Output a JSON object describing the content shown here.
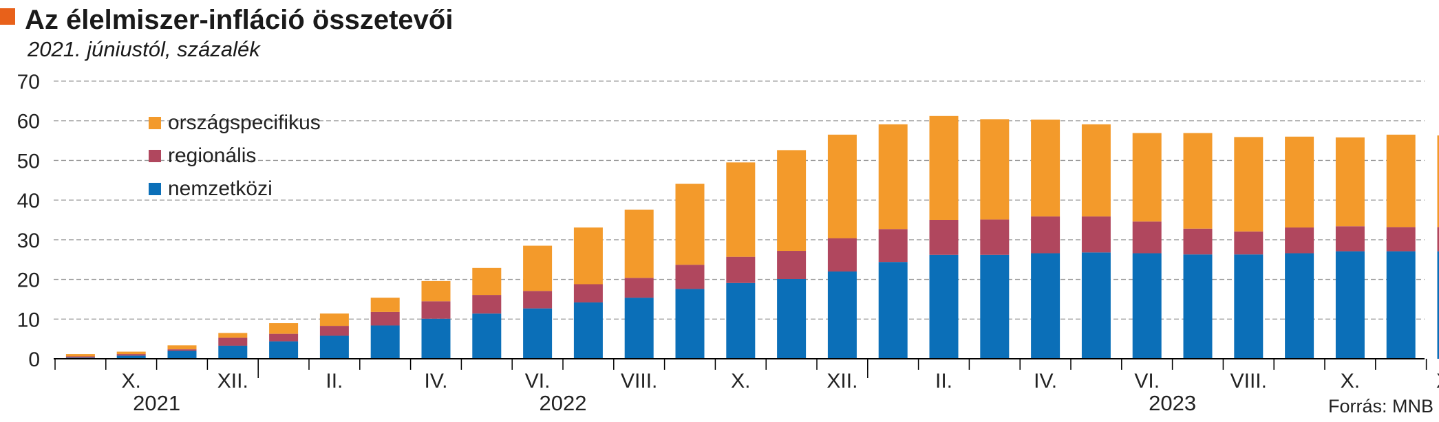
{
  "colors": {
    "title_marker": "#e8611a",
    "nemzetkozi": "#0b6fb8",
    "regionalis": "#b0475e",
    "orszagspecifikus": "#f39a2b",
    "grid": "#9a9a9a",
    "axis": "#000000"
  },
  "chart_data": {
    "type": "bar",
    "stacked": true,
    "title": "Az élelmiszer-infláció összetevői",
    "subtitle": "2021. júniustól, százalék",
    "ylim": [
      0,
      70
    ],
    "yticks": [
      "0",
      "10",
      "20",
      "30",
      "40",
      "50",
      "60",
      "70"
    ],
    "categories": [
      "2021-09",
      "2021-10",
      "2021-11",
      "2021-12",
      "2022-01",
      "2022-02",
      "2022-03",
      "2022-04",
      "2022-05",
      "2022-06",
      "2022-07",
      "2022-08",
      "2022-09",
      "2022-10",
      "2022-11",
      "2022-12",
      "2023-01",
      "2023-02",
      "2023-03",
      "2023-04",
      "2023-05",
      "2023-06",
      "2023-07",
      "2023-08",
      "2023-09",
      "2023-10",
      "2023-11",
      "2023-12"
    ],
    "xtick_labels": [
      {
        "index": 1,
        "label": "X."
      },
      {
        "index": 3,
        "label": "XII."
      },
      {
        "index": 5,
        "label": "II."
      },
      {
        "index": 7,
        "label": "IV."
      },
      {
        "index": 9,
        "label": "VI."
      },
      {
        "index": 11,
        "label": "VIII."
      },
      {
        "index": 13,
        "label": "X."
      },
      {
        "index": 15,
        "label": "XII."
      },
      {
        "index": 17,
        "label": "II."
      },
      {
        "index": 19,
        "label": "IV."
      },
      {
        "index": 21,
        "label": "VI."
      },
      {
        "index": 23,
        "label": "VIII."
      },
      {
        "index": 25,
        "label": "X."
      },
      {
        "index": 27,
        "label": "XII."
      }
    ],
    "year_labels": [
      {
        "label": "2021",
        "first": 0,
        "last": 3
      },
      {
        "label": "2022",
        "first": 4,
        "last": 15
      },
      {
        "label": "2023",
        "first": 16,
        "last": 27
      }
    ],
    "series": [
      {
        "name": "nemzetközi",
        "key": "nemzetkozi",
        "values": [
          0.3,
          0.8,
          2.0,
          3.3,
          4.4,
          5.8,
          8.4,
          10.1,
          11.4,
          12.7,
          14.2,
          15.4,
          17.6,
          19.1,
          20.1,
          22.0,
          24.4,
          26.2,
          26.2,
          26.6,
          26.8,
          26.6,
          26.3,
          26.3,
          26.6,
          27.1,
          27.1,
          27.1
        ]
      },
      {
        "name": "regionális",
        "key": "regionalis",
        "values": [
          0.3,
          0.4,
          0.4,
          2.0,
          1.9,
          2.5,
          3.4,
          4.4,
          4.7,
          4.4,
          4.6,
          5.0,
          6.1,
          6.6,
          7.1,
          8.4,
          8.3,
          8.8,
          8.9,
          9.3,
          9.1,
          8.0,
          6.5,
          5.8,
          6.5,
          6.3,
          6.1,
          6.1
        ]
      },
      {
        "name": "országspecifikus",
        "key": "orszagspecifikus",
        "values": [
          0.6,
          0.6,
          1.0,
          1.2,
          2.7,
          3.1,
          3.6,
          5.1,
          6.8,
          11.4,
          14.3,
          17.2,
          20.4,
          23.8,
          25.4,
          26.1,
          26.4,
          26.2,
          25.3,
          24.4,
          23.2,
          22.3,
          24.1,
          23.8,
          22.9,
          22.4,
          23.3,
          23.1
        ]
      }
    ],
    "legend": {
      "placement": "top-left",
      "order": [
        "orszagspecifikus",
        "regionalis",
        "nemzetkozi"
      ]
    },
    "grid": true,
    "source": "Forrás: MNB"
  }
}
